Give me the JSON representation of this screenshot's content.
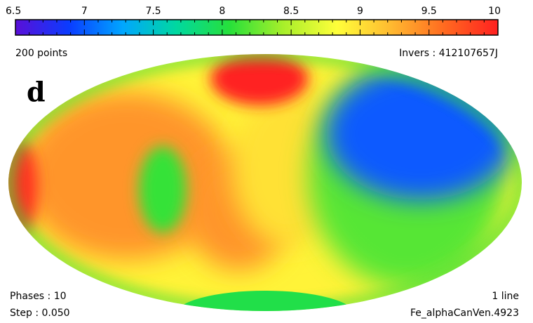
{
  "chart_data": {
    "type": "heatmap",
    "projection": "aitoff",
    "colorbar": {
      "min": 6.5,
      "max": 10,
      "ticks": [
        6.5,
        7,
        7.5,
        8,
        8.5,
        9,
        9.5,
        10
      ],
      "tick_labels": [
        "6.5",
        "7",
        "7.5",
        "8",
        "8.5",
        "9",
        "9.5",
        "10"
      ],
      "colors": [
        "#5a0fd8",
        "#0a3cff",
        "#00a6ff",
        "#00d8a0",
        "#27e03a",
        "#a8ef2a",
        "#ffff3a",
        "#ffba30",
        "#ff6a20",
        "#ff2020"
      ]
    },
    "panel_label": "d",
    "annotations": {
      "top_left": "200 points",
      "top_right": "Invers : 412107657J",
      "bottom_left_1": "Phases : 10",
      "bottom_left_2": "Step : 0.050",
      "bottom_right_1": "1 line",
      "bottom_right_2": "Fe_alphaCanVen.4923"
    },
    "background_value": 8.9,
    "features": [
      {
        "name": "limb-left-red",
        "value": 9.9
      },
      {
        "name": "orange-region-left",
        "value": 9.4
      },
      {
        "name": "green-spot-left",
        "value": 8.1
      },
      {
        "name": "red-spot-top-center",
        "value": 10.0
      },
      {
        "name": "orange-region-center",
        "value": 9.4
      },
      {
        "name": "yellow-region-center",
        "value": 9.0
      },
      {
        "name": "blue-region-right",
        "value": 7.0
      },
      {
        "name": "green-band-right",
        "value": 8.2
      },
      {
        "name": "green-south-pole-cap",
        "value": 8.0
      }
    ]
  }
}
